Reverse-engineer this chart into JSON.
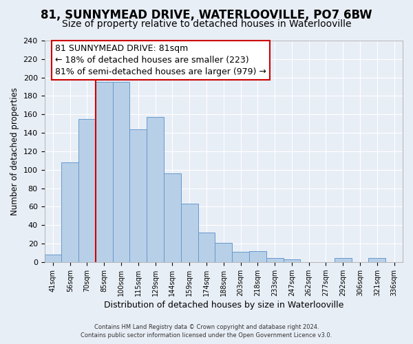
{
  "title": "81, SUNNYMEAD DRIVE, WATERLOOVILLE, PO7 6BW",
  "subtitle": "Size of property relative to detached houses in Waterlooville",
  "xlabel": "Distribution of detached houses by size in Waterlooville",
  "ylabel": "Number of detached properties",
  "bar_labels": [
    "41sqm",
    "56sqm",
    "70sqm",
    "85sqm",
    "100sqm",
    "115sqm",
    "129sqm",
    "144sqm",
    "159sqm",
    "174sqm",
    "188sqm",
    "203sqm",
    "218sqm",
    "233sqm",
    "247sqm",
    "262sqm",
    "277sqm",
    "292sqm",
    "306sqm",
    "321sqm",
    "336sqm"
  ],
  "bar_values": [
    8,
    108,
    155,
    195,
    195,
    144,
    157,
    96,
    63,
    32,
    21,
    11,
    12,
    4,
    3,
    0,
    0,
    4,
    0,
    4,
    0
  ],
  "bar_color": "#b8cfe8",
  "bar_edge_color": "#6699cc",
  "ylim": [
    0,
    240
  ],
  "yticks": [
    0,
    20,
    40,
    60,
    80,
    100,
    120,
    140,
    160,
    180,
    200,
    220,
    240
  ],
  "vline_color": "#cc0000",
  "annotation_title": "81 SUNNYMEAD DRIVE: 81sqm",
  "annotation_line1": "← 18% of detached houses are smaller (223)",
  "annotation_line2": "81% of semi-detached houses are larger (979) →",
  "annotation_box_color": "#ffffff",
  "annotation_box_edge": "#cc0000",
  "footer_line1": "Contains HM Land Registry data © Crown copyright and database right 2024.",
  "footer_line2": "Contains public sector information licensed under the Open Government Licence v3.0.",
  "bg_color": "#e8eef6",
  "grid_color": "#ffffff",
  "title_fontsize": 12,
  "subtitle_fontsize": 10,
  "ann_fontsize": 9
}
